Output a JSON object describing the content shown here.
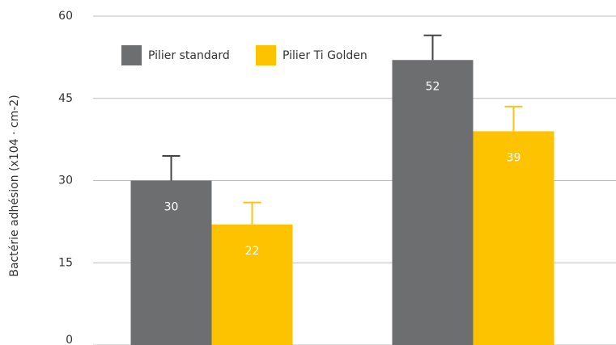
{
  "chart_data": {
    "type": "bar",
    "ylabel": "Bactérie adhésion (x104 · cm-2)",
    "categories": [
      null,
      null
    ],
    "series": [
      {
        "name": "Pilier standard",
        "color": "#6d6e70",
        "error_color": "#444444",
        "values": [
          30,
          52
        ],
        "errors": [
          4.5,
          4.5
        ]
      },
      {
        "name": "Pilier Ti Golden",
        "color": "#fdc300",
        "error_color": "#f5c518",
        "values": [
          22,
          39
        ],
        "errors": [
          4,
          4.5
        ]
      }
    ],
    "ylim": [
      0,
      60
    ],
    "yticks": [
      0,
      15,
      30,
      45,
      60
    ],
    "grid": true,
    "legend": "top-left"
  }
}
